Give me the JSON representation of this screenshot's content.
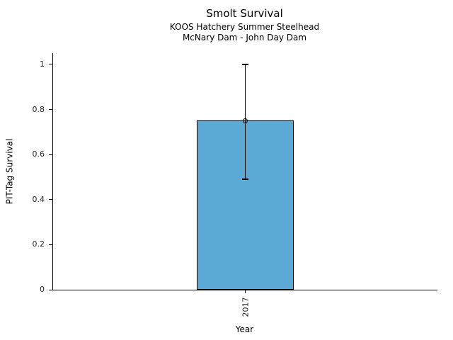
{
  "chart_data": {
    "type": "bar",
    "title": "Smolt Survival",
    "subtitle1": "KOOS Hatchery Summer Steelhead",
    "subtitle2": "McNary Dam - John Day Dam",
    "xlabel": "Year",
    "ylabel": "PIT-Tag Survival",
    "categories": [
      "2017"
    ],
    "values": [
      0.75
    ],
    "error_low": [
      0.49
    ],
    "error_high": [
      1.0
    ],
    "marker_values": [
      0.75
    ],
    "yticks": [
      0,
      0.2,
      0.4,
      0.6,
      0.8,
      1
    ],
    "ytick_labels": [
      "0",
      "0.2",
      "0.4",
      "0.6",
      "0.8",
      "1"
    ],
    "ylim": [
      0,
      1.05
    ],
    "xtick_rotation": 90,
    "grid": false,
    "legend": "none",
    "bar_color": "#5AAAD5",
    "bar_edge_color": "#000000",
    "axis_color": "#000000"
  }
}
